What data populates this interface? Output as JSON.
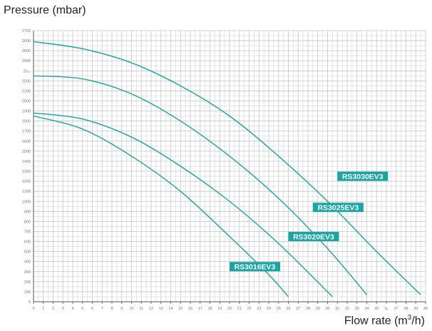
{
  "chart_data": {
    "type": "line",
    "ylabel": "Pressure (mbar)",
    "xlabel_prefix": "Flow rate (m",
    "xlabel_sup": "3",
    "xlabel_suffix": "/h)",
    "xlim": [
      0,
      40
    ],
    "ylim": [
      0,
      2700
    ],
    "x_ticks": [
      0,
      1,
      2,
      3,
      4,
      5,
      6,
      7,
      8,
      9,
      10,
      11,
      12,
      13,
      14,
      15,
      16,
      17,
      18,
      19,
      20,
      21,
      22,
      23,
      24,
      25,
      26,
      27,
      28,
      29,
      30,
      31,
      32,
      33,
      34,
      35,
      36,
      37,
      38,
      39,
      40
    ],
    "x_tick_labels": [
      "0",
      "1",
      "2",
      "3",
      "4",
      "5",
      "6",
      "7",
      "8",
      "9",
      "10",
      "11",
      "12",
      "13",
      "14",
      "15",
      "16",
      "17",
      "18",
      "19",
      "20",
      "21",
      "22",
      "23",
      "24",
      "25",
      "26",
      "27",
      "28",
      "29",
      "30",
      "31",
      "32",
      "33",
      "34",
      "35",
      "3₆",
      "37",
      "38",
      "39",
      "40"
    ],
    "y_ticks": [
      0,
      100,
      200,
      300,
      400,
      500,
      600,
      700,
      800,
      900,
      1000,
      1100,
      1200,
      1300,
      1400,
      1500,
      1600,
      1700,
      1800,
      1900,
      2000,
      2100,
      2200,
      2300,
      2400,
      2500,
      2600,
      2700
    ],
    "y_tick_labels": [
      "0",
      "100",
      "200",
      "300",
      "400",
      "500",
      "600",
      "700",
      "800",
      "900",
      "1000",
      "1100",
      "1200",
      "1300",
      "1400",
      "1500",
      "1600",
      "1700",
      "1800",
      "1900",
      "2000",
      "2100",
      "2200",
      "23₀₀",
      "2400",
      "2500",
      "2600",
      "2700"
    ],
    "grid": true,
    "line_color": "#1aa5a5",
    "label_bg": "#1aa5a5",
    "label_color": "#ffffff",
    "series": [
      {
        "name": "RS3016EV3",
        "x": [
          0,
          5,
          10,
          15,
          20,
          24,
          26
        ],
        "y": [
          1850,
          1720,
          1450,
          1100,
          650,
          270,
          50
        ],
        "label_at": [
          20,
          350
        ]
      },
      {
        "name": "RS3020EV3",
        "x": [
          0,
          5,
          10,
          15,
          20,
          25,
          30.5
        ],
        "y": [
          1880,
          1820,
          1640,
          1350,
          1000,
          580,
          50
        ],
        "label_at": [
          26,
          650
        ]
      },
      {
        "name": "RS3025EV3",
        "x": [
          0,
          5,
          10,
          15,
          20,
          25,
          30,
          34
        ],
        "y": [
          2250,
          2220,
          2070,
          1800,
          1450,
          1030,
          530,
          70
        ],
        "label_at": [
          28.5,
          940
        ]
      },
      {
        "name": "RS3030EV3",
        "x": [
          0,
          5,
          10,
          15,
          20,
          25,
          30,
          35,
          39.5
        ],
        "y": [
          2590,
          2520,
          2380,
          2150,
          1850,
          1450,
          1000,
          500,
          70
        ],
        "label_at": [
          31,
          1250
        ]
      }
    ]
  }
}
